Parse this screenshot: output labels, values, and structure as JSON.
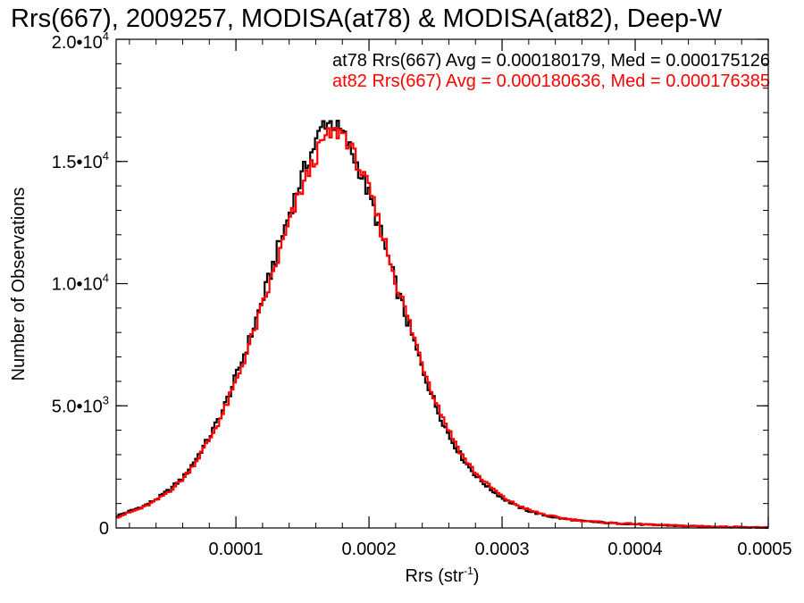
{
  "chart_data": {
    "type": "line",
    "title": "Rrs(667), 2009257, MODISA(at78) & MODISA(at82), Deep-W",
    "xlabel": "Rrs (str",
    "xlabel_sup": "-1",
    "xlabel_end": ")",
    "ylabel": "Number of Observations",
    "xlim": [
      1e-05,
      0.0005
    ],
    "ylim": [
      0,
      20000
    ],
    "x_ticks": [
      {
        "value": 0.0001,
        "label": "0.0001"
      },
      {
        "value": 0.0002,
        "label": "0.0002"
      },
      {
        "value": 0.0003,
        "label": "0.0003"
      },
      {
        "value": 0.0004,
        "label": "0.0004"
      },
      {
        "value": 0.0005,
        "label": "0.0005"
      }
    ],
    "y_ticks": [
      {
        "value": 0,
        "label": "0",
        "sup": ""
      },
      {
        "value": 5000,
        "label": "5.0•10",
        "sup": "3"
      },
      {
        "value": 10000,
        "label": "1.0•10",
        "sup": "4"
      },
      {
        "value": 15000,
        "label": "1.5•10",
        "sup": "4"
      },
      {
        "value": 20000,
        "label": "2.0•10",
        "sup": "4"
      }
    ],
    "grid": false,
    "legend_placement": "top-right",
    "annotations": [
      "at78 Rrs(667) Avg = 0.000180179, Med = 0.000175126",
      "at82 Rrs(667) Avg = 0.000180636, Med = 0.000176385"
    ],
    "series": [
      {
        "color": "#000000",
        "x": [
          1e-05,
          2e-05,
          3e-05,
          4e-05,
          5e-05,
          6e-05,
          7e-05,
          8e-05,
          9e-05,
          0.0001,
          0.00011,
          0.00012,
          0.00013,
          0.00014,
          0.00015,
          0.00016,
          0.000165,
          0.00017,
          0.000175,
          0.00018,
          0.00019,
          0.0002,
          0.00021,
          0.00022,
          0.00023,
          0.00024,
          0.00025,
          0.00026,
          0.00027,
          0.00028,
          0.00029,
          0.0003,
          0.00031,
          0.00032,
          0.00033,
          0.00034,
          0.00035,
          0.00036,
          0.00038,
          0.0004,
          0.00042,
          0.00044,
          0.00046,
          0.00048,
          0.0005
        ],
        "y": [
          500,
          700,
          900,
          1200,
          1600,
          2100,
          2900,
          3800,
          4900,
          6300,
          7800,
          9500,
          11300,
          13000,
          14600,
          15900,
          16600,
          16600,
          16400,
          16100,
          14900,
          13500,
          11700,
          9800,
          8100,
          6400,
          4900,
          3700,
          2800,
          2100,
          1600,
          1200,
          900,
          680,
          530,
          420,
          340,
          280,
          200,
          150,
          110,
          75,
          50,
          30,
          15
        ]
      },
      {
        "color": "#ff0000",
        "x": [
          1e-05,
          2e-05,
          3e-05,
          4e-05,
          5e-05,
          6e-05,
          7e-05,
          8e-05,
          9e-05,
          0.0001,
          0.00011,
          0.00012,
          0.00013,
          0.00014,
          0.00015,
          0.00016,
          0.000165,
          0.00017,
          0.000175,
          0.00018,
          0.00019,
          0.0002,
          0.00021,
          0.00022,
          0.00023,
          0.00024,
          0.00025,
          0.00026,
          0.00027,
          0.00028,
          0.00029,
          0.0003,
          0.00031,
          0.00032,
          0.00033,
          0.00034,
          0.00035,
          0.00036,
          0.00038,
          0.0004,
          0.00042,
          0.00044,
          0.00046,
          0.00048,
          0.0005
        ],
        "y": [
          450,
          650,
          850,
          1150,
          1550,
          2050,
          2800,
          3700,
          4750,
          6100,
          7600,
          9200,
          10900,
          12600,
          14100,
          15300,
          15900,
          16100,
          16200,
          16200,
          15000,
          13700,
          11900,
          10000,
          8300,
          6600,
          5100,
          3900,
          2900,
          2200,
          1700,
          1250,
          950,
          720,
          560,
          440,
          360,
          290,
          210,
          160,
          115,
          80,
          55,
          35,
          18
        ]
      }
    ]
  }
}
